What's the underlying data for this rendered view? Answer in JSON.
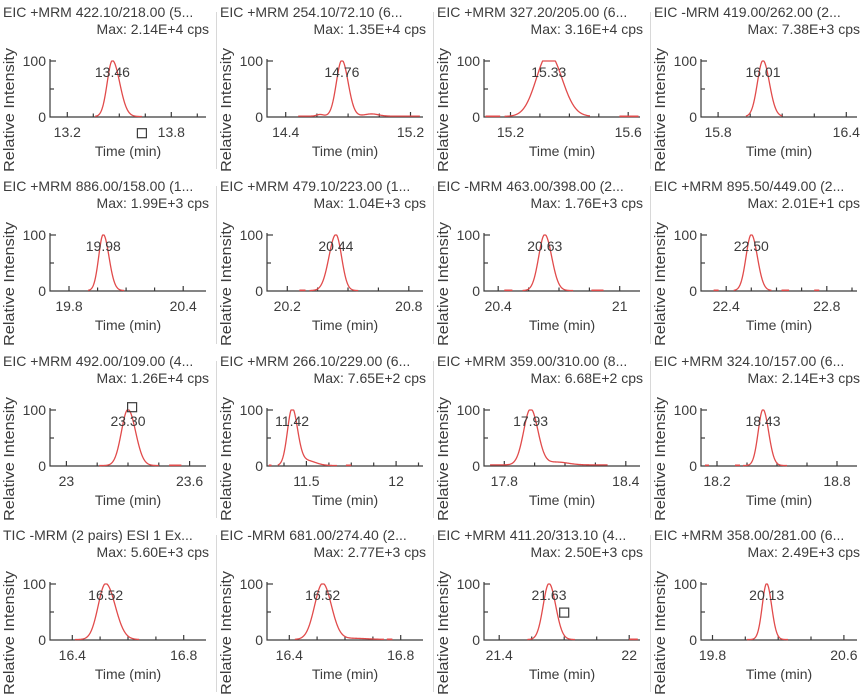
{
  "figure": {
    "kind": "chromatogram-grid",
    "rows": 4,
    "cols": 4
  },
  "colors": {
    "background": "#ffffff",
    "trace_red": "#e14b4b",
    "text": "#3c3c3c",
    "axis": "#3a3a3a",
    "divider": "#d8d8d8"
  },
  "shared": {
    "y_axis_top_label": "100",
    "y_axis_bottom_label": "0"
  },
  "chart_data": [
    {
      "type": "line",
      "title": "EIC +MRM 422.10/218.00 (5...",
      "max_label": "Max: 2.14E+4 cps",
      "xlabel": "Time (min)",
      "ylabel": "Relative Intensity",
      "ylim": [
        0,
        100
      ],
      "yticks": [
        0,
        50,
        100
      ],
      "xlim": [
        13.1,
        14.0
      ],
      "xticks": [
        {
          "v": 13.2,
          "label": "13.2"
        },
        {
          "v": 13.8,
          "label": "13.8"
        }
      ],
      "peak": {
        "time": 13.46,
        "label": "13.46",
        "height": 100,
        "sigma_l": 0.03,
        "sigma_r": 0.042,
        "amp": 100
      },
      "range": [
        13.36,
        13.63
      ],
      "base": 0.8,
      "bumps": [],
      "dashes": [],
      "marker": {
        "time": 13.63,
        "y_pct": -29
      }
    },
    {
      "type": "line",
      "title": "EIC +MRM 254.10/72.10 (6...",
      "max_label": "Max: 1.35E+4 cps",
      "xlabel": "Time (min)",
      "ylabel": "Relative Intensity",
      "ylim": [
        0,
        100
      ],
      "yticks": [
        0,
        50,
        100
      ],
      "xlim": [
        14.28,
        15.28
      ],
      "xticks": [
        {
          "v": 14.4,
          "label": "14.4"
        },
        {
          "v": 15.2,
          "label": "15.2"
        }
      ],
      "peak": {
        "time": 14.76,
        "label": "14.76",
        "height": 100,
        "sigma_l": 0.035,
        "sigma_r": 0.04,
        "amp": 100
      },
      "range": [
        14.48,
        15.26
      ],
      "base": 1.5,
      "bumps": [
        {
          "t": 14.62,
          "h": 3,
          "s": 0.022
        },
        {
          "t": 14.95,
          "h": 4,
          "s": 0.045
        }
      ],
      "dashes": [],
      "marker": null
    },
    {
      "type": "line",
      "title": "EIC +MRM 327.20/205.00 (6...",
      "max_label": "Max: 3.16E+4 cps",
      "xlabel": "Time (min)",
      "ylabel": "Relative Intensity",
      "ylim": [
        0,
        100
      ],
      "yticks": [
        0,
        50,
        100
      ],
      "xlim": [
        15.11,
        15.64
      ],
      "xticks": [
        {
          "v": 15.2,
          "label": "15.2"
        },
        {
          "v": 15.6,
          "label": "15.6"
        }
      ],
      "peak": {
        "time": 15.33,
        "label": "15.33",
        "height": 100,
        "sigma_l": 0.042,
        "sigma_r": 0.045,
        "amp": 112
      },
      "range": [
        15.18,
        15.47
      ],
      "base": 1.0,
      "bumps": [],
      "dashes": [
        [
          15.115,
          15.165
        ],
        [
          15.57,
          15.635
        ]
      ],
      "marker": null
    },
    {
      "type": "line",
      "title": "EIC -MRM 419.00/262.00 (2...",
      "max_label": "Max: 7.38E+3 cps",
      "xlabel": "Time (min)",
      "ylabel": "Relative Intensity",
      "ylim": [
        0,
        100
      ],
      "yticks": [
        0,
        50,
        100
      ],
      "xlim": [
        15.72,
        16.45
      ],
      "xticks": [
        {
          "v": 15.8,
          "label": "15.8"
        },
        {
          "v": 16.4,
          "label": "16.4"
        }
      ],
      "peak": {
        "time": 16.01,
        "label": "16.01",
        "height": 100,
        "sigma_l": 0.026,
        "sigma_r": 0.03,
        "amp": 100
      },
      "range": [
        15.93,
        16.1
      ],
      "base": 0.8,
      "bumps": [],
      "dashes": [],
      "marker": null
    },
    {
      "type": "line",
      "title": "EIC +MRM 886.00/158.00 (1...",
      "max_label": "Max: 1.99E+3 cps",
      "xlabel": "Time (min)",
      "ylabel": "Relative Intensity",
      "ylim": [
        0,
        100
      ],
      "yticks": [
        0,
        50,
        100
      ],
      "xlim": [
        19.7,
        20.52
      ],
      "xticks": [
        {
          "v": 19.8,
          "label": "19.8"
        },
        {
          "v": 20.4,
          "label": "20.4"
        }
      ],
      "peak": {
        "time": 19.98,
        "label": "19.98",
        "height": 100,
        "sigma_l": 0.024,
        "sigma_r": 0.03,
        "amp": 100
      },
      "range": [
        19.9,
        20.09
      ],
      "base": 0.8,
      "bumps": [],
      "dashes": [],
      "marker": null
    },
    {
      "type": "line",
      "title": "EIC +MRM 479.10/223.00 (1...",
      "max_label": "Max: 1.04E+3 cps",
      "xlabel": "Time (min)",
      "ylabel": "Relative Intensity",
      "ylim": [
        0,
        100
      ],
      "yticks": [
        0,
        50,
        100
      ],
      "xlim": [
        20.1,
        20.87
      ],
      "xticks": [
        {
          "v": 20.2,
          "label": "20.2"
        },
        {
          "v": 20.8,
          "label": "20.8"
        }
      ],
      "peak": {
        "time": 20.44,
        "label": "20.44",
        "height": 100,
        "sigma_l": 0.034,
        "sigma_r": 0.028,
        "amp": 100
      },
      "range": [
        20.31,
        20.55
      ],
      "base": 0.8,
      "bumps": [],
      "dashes": [
        [
          20.26,
          20.29
        ]
      ],
      "marker": null
    },
    {
      "type": "line",
      "title": "EIC -MRM 463.00/398.00 (2...",
      "max_label": "Max: 1.76E+3 cps",
      "xlabel": "Time (min)",
      "ylabel": "Relative Intensity",
      "ylim": [
        0,
        100
      ],
      "yticks": [
        0,
        50,
        100
      ],
      "xlim": [
        20.33,
        21.1
      ],
      "xticks": [
        {
          "v": 20.4,
          "label": "20.4"
        },
        {
          "v": 21.0,
          "label": "21"
        }
      ],
      "peak": {
        "time": 20.63,
        "label": "20.63",
        "height": 100,
        "sigma_l": 0.03,
        "sigma_r": 0.034,
        "amp": 100
      },
      "range": [
        20.52,
        20.77
      ],
      "base": 0.8,
      "bumps": [],
      "dashes": [
        [
          20.43,
          20.47
        ],
        [
          20.86,
          20.92
        ]
      ],
      "marker": null
    },
    {
      "type": "line",
      "title": "EIC +MRM 895.50/449.00 (2...",
      "max_label": "Max: 2.01E+1 cps",
      "xlabel": "Time (min)",
      "ylabel": "Relative Intensity",
      "ylim": [
        0,
        100
      ],
      "yticks": [
        0,
        50,
        100
      ],
      "xlim": [
        22.3,
        22.92
      ],
      "xticks": [
        {
          "v": 22.4,
          "label": "22.4"
        },
        {
          "v": 22.8,
          "label": "22.8"
        }
      ],
      "peak": {
        "time": 22.5,
        "label": "22.50",
        "height": 100,
        "sigma_l": 0.021,
        "sigma_r": 0.024,
        "amp": 100
      },
      "range": [
        22.43,
        22.58
      ],
      "base": 0.8,
      "bumps": [],
      "dashes": [
        [
          22.35,
          22.37
        ],
        [
          22.62,
          22.65
        ],
        [
          22.75,
          22.77
        ]
      ],
      "marker": null
    },
    {
      "type": "line",
      "title": "EIC +MRM 492.00/109.00 (4...",
      "max_label": "Max: 1.26E+4 cps",
      "xlabel": "Time (min)",
      "ylabel": "Relative Intensity",
      "ylim": [
        0,
        100
      ],
      "yticks": [
        0,
        50,
        100
      ],
      "xlim": [
        22.92,
        23.68
      ],
      "xticks": [
        {
          "v": 23.0,
          "label": "23"
        },
        {
          "v": 23.6,
          "label": "23.6"
        }
      ],
      "peak": {
        "time": 23.3,
        "label": "23.30",
        "height": 100,
        "sigma_l": 0.032,
        "sigma_r": 0.037,
        "amp": 100
      },
      "range": [
        23.16,
        23.45
      ],
      "base": 0.8,
      "bumps": [],
      "dashes": [
        [
          23.5,
          23.56
        ]
      ],
      "marker": {
        "time": 23.32,
        "y_pct": 105
      }
    },
    {
      "type": "line",
      "title": "EIC +MRM 266.10/229.00 (6...",
      "max_label": "Max: 7.65E+2 cps",
      "xlabel": "Time (min)",
      "ylabel": "Relative Intensity",
      "ylim": [
        0,
        100
      ],
      "yticks": [
        0,
        50,
        100
      ],
      "xlim": [
        11.28,
        12.15
      ],
      "xticks": [
        {
          "v": 11.5,
          "label": "11.5"
        },
        {
          "v": 12.0,
          "label": "12"
        }
      ],
      "peak": {
        "time": 11.42,
        "label": "11.42",
        "height": 100,
        "sigma_l": 0.026,
        "sigma_r": 0.03,
        "amp": 100
      },
      "range": [
        11.34,
        11.67
      ],
      "base": 0.8,
      "bumps": [
        {
          "t": 11.5,
          "h": 9,
          "s": 0.05
        }
      ],
      "dashes": [
        [
          11.29,
          11.305
        ],
        [
          11.72,
          11.75
        ]
      ],
      "marker": null
    },
    {
      "type": "line",
      "title": "EIC +MRM 359.00/310.00 (8...",
      "max_label": "Max: 6.68E+2 cps",
      "xlabel": "Time (min)",
      "ylabel": "Relative Intensity",
      "ylim": [
        0,
        100
      ],
      "yticks": [
        0,
        50,
        100
      ],
      "xlim": [
        17.7,
        18.47
      ],
      "xticks": [
        {
          "v": 17.8,
          "label": "17.8"
        },
        {
          "v": 18.4,
          "label": "18.4"
        }
      ],
      "peak": {
        "time": 17.93,
        "label": "17.93",
        "height": 100,
        "sigma_l": 0.034,
        "sigma_r": 0.036,
        "amp": 100
      },
      "range": [
        17.73,
        18.31
      ],
      "base": 2.0,
      "bumps": [
        {
          "t": 18.06,
          "h": 5,
          "s": 0.055
        }
      ],
      "dashes": [],
      "marker": null
    },
    {
      "type": "line",
      "title": "EIC +MRM 324.10/157.00 (6...",
      "max_label": "Max: 2.14E+3 cps",
      "xlabel": "Time (min)",
      "ylabel": "Relative Intensity",
      "ylim": [
        0,
        100
      ],
      "yticks": [
        0,
        50,
        100
      ],
      "xlim": [
        18.12,
        18.9
      ],
      "xticks": [
        {
          "v": 18.2,
          "label": "18.2"
        },
        {
          "v": 18.8,
          "label": "18.8"
        }
      ],
      "peak": {
        "time": 18.43,
        "label": "18.43",
        "height": 100,
        "sigma_l": 0.024,
        "sigma_r": 0.028,
        "amp": 100
      },
      "range": [
        18.33,
        18.55
      ],
      "base": 0.8,
      "bumps": [],
      "dashes": [
        [
          18.14,
          18.16
        ],
        [
          18.29,
          18.315
        ]
      ],
      "marker": null
    },
    {
      "type": "line",
      "title": "TIC -MRM (2 pairs) ESI 1 Ex...",
      "max_label": "Max: 5.60E+3 cps",
      "xlabel": "Time (min)",
      "ylabel": "Relative Intensity",
      "ylim": [
        0,
        100
      ],
      "yticks": [
        0,
        50,
        100
      ],
      "xlim": [
        16.32,
        16.88
      ],
      "xticks": [
        {
          "v": 16.4,
          "label": "16.4"
        },
        {
          "v": 16.8,
          "label": "16.8"
        }
      ],
      "peak": {
        "time": 16.52,
        "label": "16.52",
        "height": 100,
        "sigma_l": 0.027,
        "sigma_r": 0.034,
        "amp": 100
      },
      "range": [
        16.41,
        16.64
      ],
      "base": 0.8,
      "bumps": [],
      "dashes": [],
      "marker": null
    },
    {
      "type": "line",
      "title": "EIC -MRM 681.00/274.40 (2...",
      "max_label": "Max: 2.77E+3 cps",
      "xlabel": "Time (min)",
      "ylabel": "Relative Intensity",
      "ylim": [
        0,
        100
      ],
      "yticks": [
        0,
        50,
        100
      ],
      "xlim": [
        16.32,
        16.88
      ],
      "xticks": [
        {
          "v": 16.4,
          "label": "16.4"
        },
        {
          "v": 16.8,
          "label": "16.8"
        }
      ],
      "peak": {
        "time": 16.52,
        "label": "16.52",
        "height": 100,
        "sigma_l": 0.029,
        "sigma_r": 0.031,
        "amp": 100
      },
      "range": [
        16.42,
        16.74
      ],
      "base": 1.0,
      "bumps": [
        {
          "t": 16.63,
          "h": 2,
          "s": 0.05
        }
      ],
      "dashes": [
        [
          16.75,
          16.77
        ]
      ],
      "marker": null
    },
    {
      "type": "line",
      "title": "EIC +MRM 411.20/313.10 (4...",
      "max_label": "Max: 2.50E+3 cps",
      "xlabel": "Time (min)",
      "ylabel": "Relative Intensity",
      "ylim": [
        0,
        100
      ],
      "yticks": [
        0,
        50,
        100
      ],
      "xlim": [
        21.33,
        22.05
      ],
      "xticks": [
        {
          "v": 21.4,
          "label": "21.4"
        },
        {
          "v": 22.0,
          "label": "22"
        }
      ],
      "peak": {
        "time": 21.63,
        "label": "21.63",
        "height": 100,
        "sigma_l": 0.027,
        "sigma_r": 0.031,
        "amp": 100
      },
      "range": [
        21.53,
        21.75
      ],
      "base": 0.8,
      "bumps": [],
      "dashes": [
        [
          22.0,
          22.04
        ]
      ],
      "marker": {
        "time": 21.7,
        "y_pct": 49
      }
    },
    {
      "type": "line",
      "title": "EIC +MRM 358.00/281.00 (6...",
      "max_label": "Max: 2.49E+3 cps",
      "xlabel": "Time (min)",
      "ylabel": "Relative Intensity",
      "ylim": [
        0,
        100
      ],
      "yticks": [
        0,
        50,
        100
      ],
      "xlim": [
        19.73,
        20.68
      ],
      "xticks": [
        {
          "v": 19.8,
          "label": "19.8"
        },
        {
          "v": 20.6,
          "label": "20.6"
        }
      ],
      "peak": {
        "time": 20.13,
        "label": "20.13",
        "height": 100,
        "sigma_l": 0.027,
        "sigma_r": 0.03,
        "amp": 100
      },
      "range": [
        20.01,
        20.26
      ],
      "base": 0.8,
      "bumps": [],
      "dashes": [],
      "marker": null
    }
  ]
}
